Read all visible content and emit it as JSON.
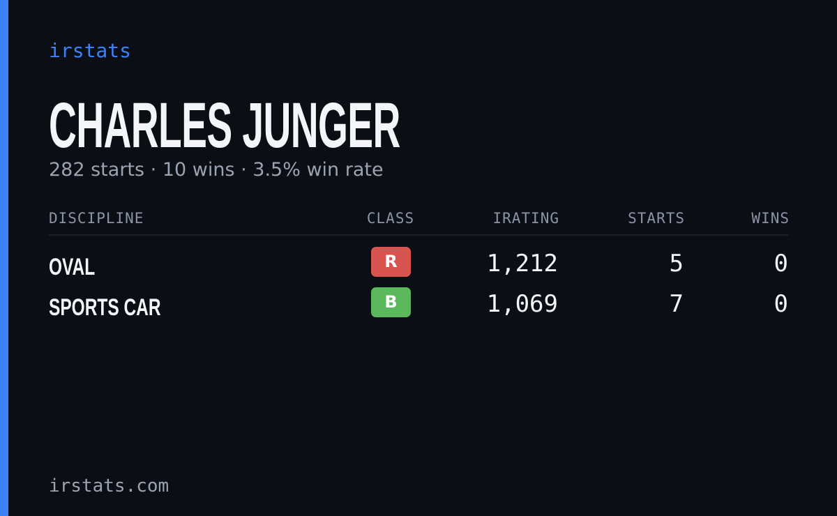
{
  "header": {
    "brand": "irstats",
    "name": "CHARLES JUNGER",
    "summary": "282 starts · 10 wins · 3.5% win rate"
  },
  "table": {
    "columns": [
      "DISCIPLINE",
      "CLASS",
      "IRATING",
      "STARTS",
      "WINS"
    ],
    "rows": [
      [
        "OVAL",
        "R",
        "1,212",
        "5",
        "0"
      ],
      [
        "SPORTS CAR",
        "B",
        "1,069",
        "7",
        "0"
      ]
    ]
  },
  "footer": {
    "site": "irstats.com"
  }
}
